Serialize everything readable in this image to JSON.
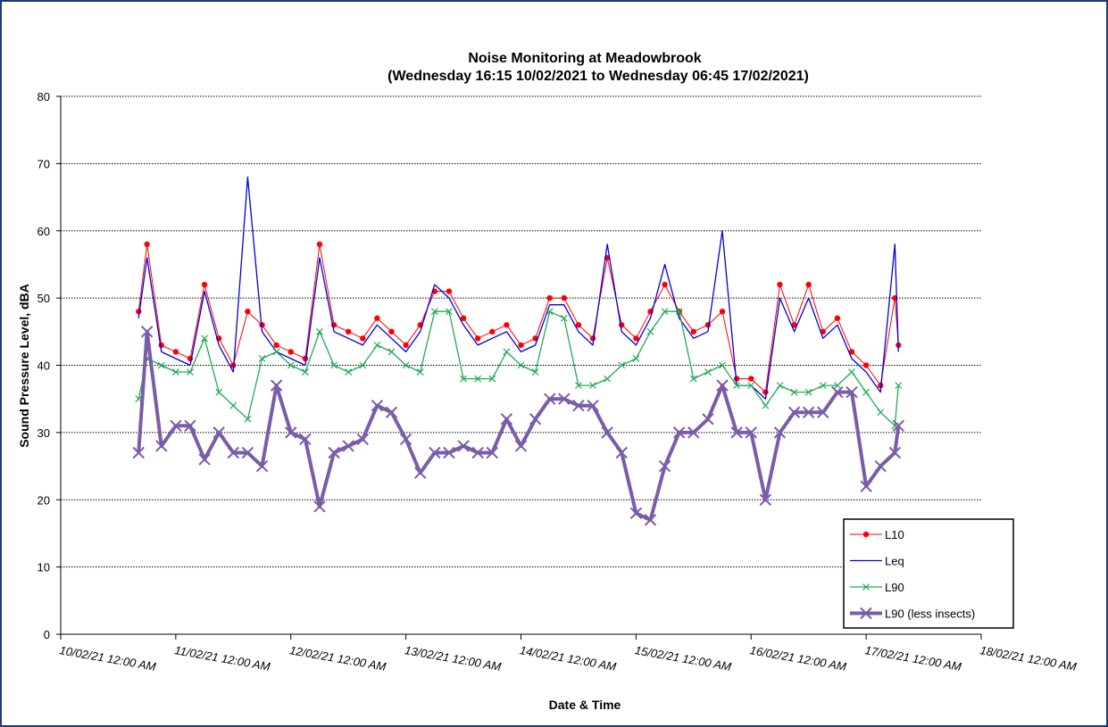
{
  "chart_data": {
    "type": "line",
    "title": "Noise Monitoring at Meadowbrook",
    "subtitle": "(Wednesday  16:15  10/02/2021 to Wednesday  06:45  17/02/2021)",
    "x_label": "Date & Time",
    "y_label": "Sound Pressure Level, dBA",
    "x": [
      0.677,
      0.75,
      0.875,
      1,
      1.125,
      1.25,
      1.375,
      1.5,
      1.625,
      1.75,
      1.875,
      2,
      2.125,
      2.25,
      2.375,
      2.5,
      2.625,
      2.75,
      2.875,
      3,
      3.125,
      3.25,
      3.375,
      3.5,
      3.625,
      3.75,
      3.875,
      4,
      4.125,
      4.25,
      4.375,
      4.5,
      4.625,
      4.75,
      4.875,
      5,
      5.125,
      5.25,
      5.375,
      5.5,
      5.625,
      5.75,
      5.875,
      6,
      6.125,
      6.25,
      6.375,
      6.5,
      6.625,
      6.75,
      6.875,
      7,
      7.125,
      7.25,
      7.281
    ],
    "series": [
      {
        "name": "L10",
        "color": "#ff0000",
        "marker": "circle",
        "width": 1,
        "values": [
          48,
          58,
          43,
          42,
          41,
          52,
          44,
          40,
          48,
          46,
          43,
          42,
          41,
          58,
          46,
          45,
          44,
          47,
          45,
          43,
          46,
          51,
          51,
          47,
          44,
          45,
          46,
          43,
          44,
          50,
          50,
          46,
          44,
          56,
          46,
          44,
          48,
          52,
          48,
          45,
          46,
          48,
          38,
          38,
          36,
          52,
          46,
          52,
          45,
          47,
          42,
          40,
          37,
          50,
          43
        ]
      },
      {
        "name": "Leq",
        "color": "#0000e0",
        "marker": "none",
        "width": 1.3,
        "values": [
          47,
          56,
          42,
          41,
          40,
          51,
          43,
          39,
          68,
          45,
          42,
          41,
          40,
          56,
          45,
          44,
          43,
          46,
          44,
          42,
          45,
          52,
          50,
          46,
          43,
          44,
          45,
          42,
          43,
          49,
          49,
          45,
          43,
          58,
          45,
          43,
          47,
          55,
          47,
          44,
          45,
          60,
          37,
          37,
          35,
          50,
          45,
          50,
          44,
          46,
          41,
          39,
          36,
          58,
          42
        ]
      },
      {
        "name": "L90",
        "color": "#22aa55",
        "marker": "x",
        "width": 1.3,
        "values": [
          35,
          41,
          40,
          39,
          39,
          44,
          36,
          34,
          32,
          41,
          42,
          40,
          39,
          45,
          40,
          39,
          40,
          43,
          42,
          40,
          39,
          48,
          48,
          38,
          38,
          38,
          42,
          40,
          39,
          48,
          47,
          37,
          37,
          38,
          40,
          41,
          45,
          48,
          48,
          38,
          39,
          40,
          37,
          37,
          34,
          37,
          36,
          36,
          37,
          37,
          39,
          36,
          33,
          31,
          37
        ]
      },
      {
        "name": "L90 (less insects)",
        "color": "#7a5ca8",
        "marker": "x",
        "width": 4,
        "values": [
          27,
          45,
          28,
          31,
          31,
          26,
          30,
          27,
          27,
          25,
          37,
          30,
          29,
          19,
          27,
          28,
          29,
          34,
          33,
          29,
          24,
          27,
          27,
          28,
          27,
          27,
          32,
          28,
          32,
          35,
          35,
          34,
          34,
          30,
          27,
          18,
          17,
          25,
          30,
          30,
          32,
          37,
          30,
          30,
          20,
          30,
          33,
          33,
          33,
          36,
          36,
          22,
          25,
          27,
          31
        ]
      }
    ],
    "xlim": [
      0,
      8
    ],
    "xticks": [
      {
        "value": 0,
        "label": "10/02/21  12:00 AM"
      },
      {
        "value": 1,
        "label": "11/02/21  12:00 AM"
      },
      {
        "value": 2,
        "label": "12/02/21  12:00 AM"
      },
      {
        "value": 3,
        "label": "13/02/21  12:00 AM"
      },
      {
        "value": 4,
        "label": "14/02/21  12:00 AM"
      },
      {
        "value": 5,
        "label": "15/02/21  12:00 AM"
      },
      {
        "value": 6,
        "label": "16/02/21  12:00 AM"
      },
      {
        "value": 7,
        "label": "17/02/21  12:00 AM"
      },
      {
        "value": 8,
        "label": "18/02/21  12:00 AM"
      }
    ],
    "ylim": [
      0,
      80
    ],
    "yticks": [
      0,
      10,
      20,
      30,
      40,
      50,
      60,
      70,
      80
    ],
    "grid": true,
    "legend": "lower right"
  }
}
